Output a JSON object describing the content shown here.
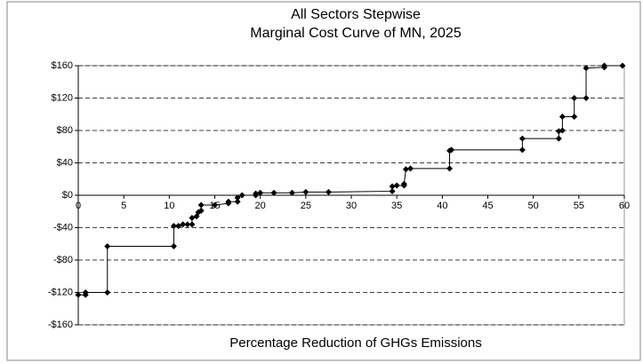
{
  "chart_data": {
    "type": "line",
    "title": "All Sectors Stepwise",
    "subtitle": "Marginal Cost Curve of MN, 2025",
    "x_label": "Percentage Reduction of GHGs Emissions",
    "series": [
      {
        "name": "Marginal Cost",
        "color": "#000000",
        "x": [
          0,
          0.8,
          0.8,
          3.2,
          3.2,
          10.5,
          10.5,
          11,
          11.5,
          12,
          12.5,
          12.5,
          13,
          13.2,
          13.5,
          13.5,
          15,
          16.5,
          16.5,
          17.5,
          17.5,
          18,
          19.5,
          19.5,
          20,
          21.5,
          23.5,
          25,
          27.5,
          34.5,
          34.5,
          35,
          35.8,
          35.8,
          36,
          36.5,
          40.8,
          40.8,
          41,
          48.8,
          48.8,
          52.8,
          52.8,
          53.2,
          53.2,
          54.5,
          54.5,
          55.8,
          55.8,
          57.8,
          57.8,
          59.8
        ],
        "values": [
          -123,
          -123,
          -120,
          -120,
          -63,
          -63,
          -38,
          -38,
          -36,
          -36,
          -36,
          -28,
          -26,
          -21,
          -19,
          -12,
          -12,
          -10,
          -8,
          -8,
          -3,
          0,
          0,
          2,
          3,
          3,
          3,
          4,
          4,
          5,
          11,
          12,
          12,
          14,
          32,
          33,
          33,
          55,
          56,
          56,
          70,
          70,
          79,
          80,
          97,
          97,
          120,
          120,
          157,
          158,
          160,
          160
        ]
      }
    ],
    "xlim": [
      0,
      60
    ],
    "xticks": [
      0,
      5,
      10,
      15,
      20,
      25,
      30,
      35,
      40,
      45,
      50,
      55,
      60
    ],
    "ylim": [
      -160,
      160
    ],
    "yticks": [
      {
        "value": -160,
        "label": "-$160"
      },
      {
        "value": -120,
        "label": "-$120"
      },
      {
        "value": -80,
        "label": "-$80"
      },
      {
        "value": -40,
        "label": "-$40"
      },
      {
        "value": 0,
        "label": "$0"
      },
      {
        "value": 40,
        "label": "$40"
      },
      {
        "value": 80,
        "label": "$80"
      },
      {
        "value": 120,
        "label": "$120"
      },
      {
        "value": 160,
        "label": "$160"
      }
    ],
    "grid": true
  }
}
